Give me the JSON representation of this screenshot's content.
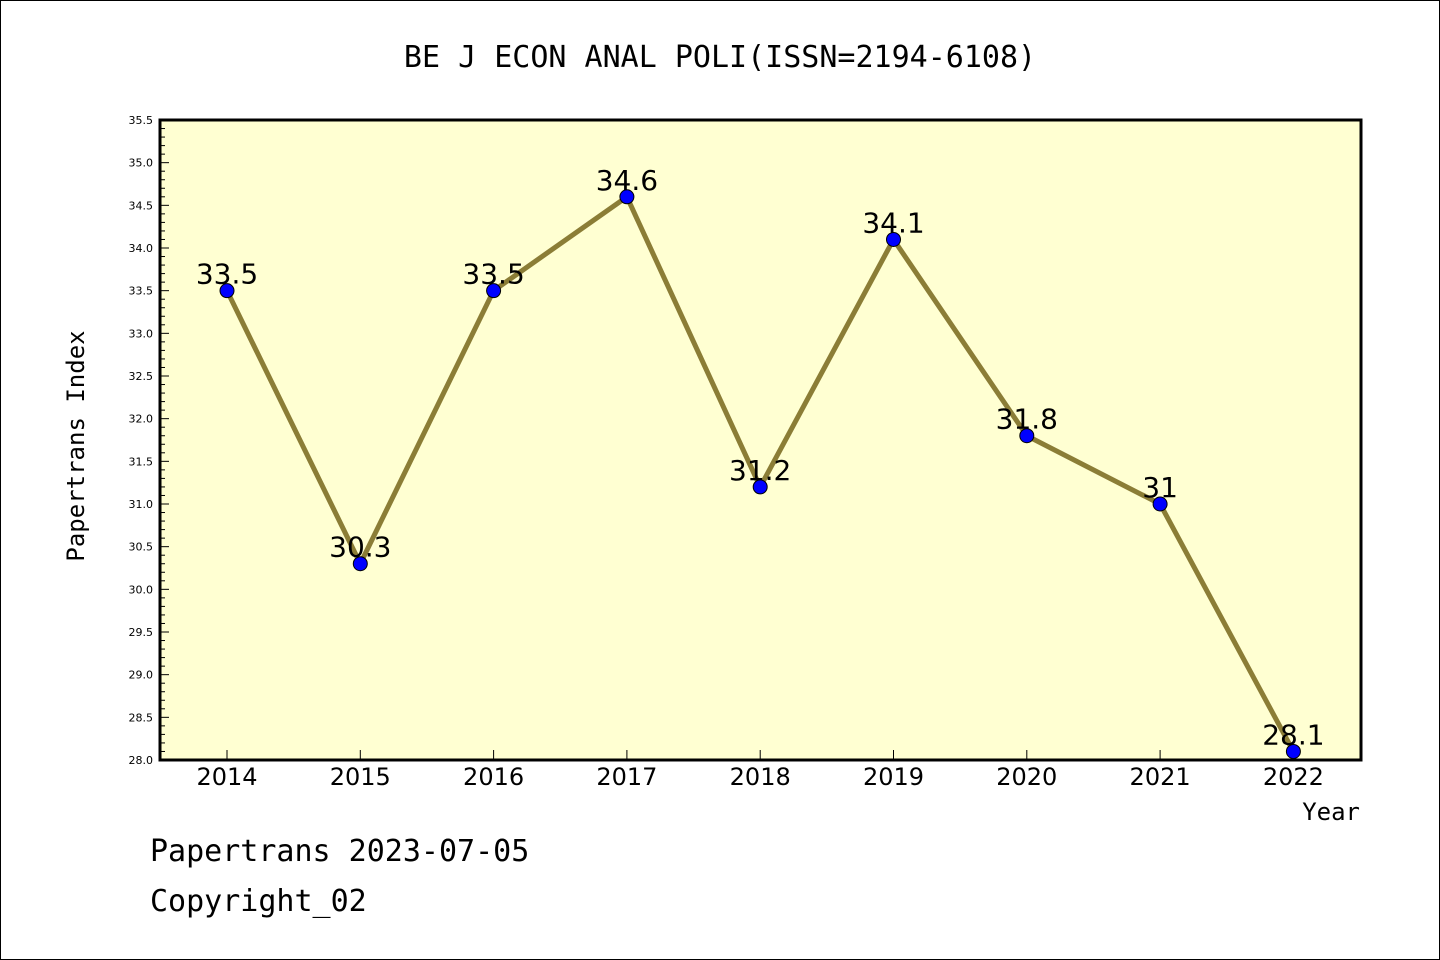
{
  "chart_data": {
    "type": "line",
    "title": "BE J ECON ANAL POLI(ISSN=2194-6108)",
    "xlabel": "Year",
    "ylabel": "Papertrans Index",
    "categories": [
      "2014",
      "2015",
      "2016",
      "2017",
      "2018",
      "2019",
      "2020",
      "2021",
      "2022"
    ],
    "values": [
      33.5,
      30.3,
      33.5,
      34.6,
      31.2,
      34.1,
      31.8,
      31,
      28.1
    ],
    "data_labels": [
      "33.5",
      "30.3",
      "33.5",
      "34.6",
      "31.2",
      "34.1",
      "31.8",
      "31",
      "28.1"
    ],
    "ylim": [
      28.0,
      35.5
    ],
    "yticks": [
      "28.0",
      "28.5",
      "29.0",
      "29.5",
      "30.0",
      "30.5",
      "31.0",
      "31.5",
      "32.0",
      "32.5",
      "33.0",
      "33.5",
      "34.0",
      "34.5",
      "35.0",
      "35.5"
    ],
    "grid": false,
    "colors": {
      "plot_background": "#ffffd2",
      "line": "#8b7d36",
      "marker": "#0000ff"
    }
  },
  "footer": {
    "line1": "Papertrans 2023-07-05",
    "line2": "Copyright_02"
  }
}
